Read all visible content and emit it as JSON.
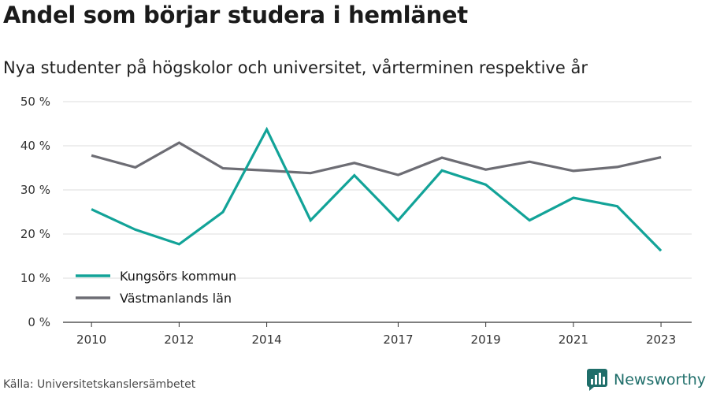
{
  "header": {
    "title": "Andel som börjar studera i hemlänet",
    "subtitle": "Nya studenter på högskolor och universitet, vårterminen respektive år"
  },
  "footer": {
    "source": "Källa: Universitetskanslersämbetet",
    "brand": "Newsworthy",
    "brand_icon": "bar-chart-logo-icon"
  },
  "colors": {
    "kungsor": "#12a398",
    "vastmanland": "#6d6d74",
    "grid": "#dcdcdc",
    "axis": "#333333",
    "brand": "#1f6e6a"
  },
  "chart_data": {
    "type": "line",
    "ylim": [
      0,
      50
    ],
    "y_ticks": [
      "0 %",
      "10 %",
      "20 %",
      "30 %",
      "40 %",
      "50 %"
    ],
    "y_tick_values": [
      0,
      10,
      20,
      30,
      40,
      50
    ],
    "x_ticks": [
      "2010",
      "2012",
      "2014",
      "2017",
      "2019",
      "2021",
      "2023"
    ],
    "x_tick_values": [
      2010,
      2012,
      2014,
      2017,
      2019,
      2021,
      2023
    ],
    "xlim": [
      2009.35,
      2023.7
    ],
    "grid": true,
    "legend_position": "bottom-left",
    "series": [
      {
        "name": "Kungsörs kommun",
        "color_key": "kungsor",
        "x": [
          2010,
          2011,
          2012,
          2013,
          2014,
          2015,
          2016,
          2017,
          2018,
          2019,
          2020,
          2021,
          2022,
          2023
        ],
        "values": [
          25.6,
          21.0,
          17.7,
          25.0,
          43.7,
          23.1,
          33.3,
          23.1,
          34.4,
          31.2,
          23.1,
          28.2,
          26.3,
          16.2
        ]
      },
      {
        "name": "Västmanlands län",
        "color_key": "vastmanland",
        "x": [
          2010,
          2011,
          2012,
          2013,
          2014,
          2015,
          2016,
          2017,
          2018,
          2019,
          2020,
          2021,
          2022,
          2023
        ],
        "values": [
          37.8,
          35.1,
          40.7,
          34.9,
          34.4,
          33.8,
          36.1,
          33.4,
          37.3,
          34.6,
          36.4,
          34.3,
          35.2,
          37.4
        ]
      }
    ]
  }
}
